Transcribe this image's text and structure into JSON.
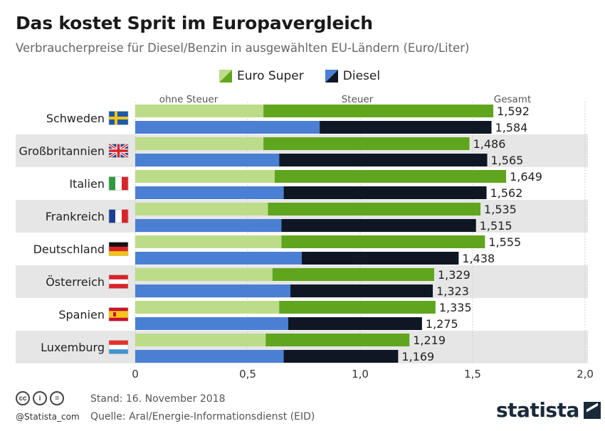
{
  "title": "Das kostet Sprit im Europavergleich",
  "subtitle": "Verbraucherpreise für Diesel/Benzin in ausgewählten EU-Ländern (Euro/Liter)",
  "legend": {
    "super": "Euro Super",
    "diesel": "Diesel"
  },
  "colors": {
    "super_light": "#bcdc8a",
    "super_dark": "#5fa51e",
    "diesel_light": "#4a7fd4",
    "diesel_dark": "#0f1724",
    "stripe": "#e6e6e6"
  },
  "chart_data": {
    "type": "bar",
    "orientation": "horizontal-stacked",
    "title": "Das kostet Sprit im Europavergleich",
    "column_labels": {
      "net": "ohne Steuer",
      "tax": "Steuer",
      "total": "Gesamt"
    },
    "xlim": [
      0,
      2.0
    ],
    "xticks": [
      "0",
      "0,5",
      "1,0",
      "1,5",
      "2,0"
    ],
    "tick_values": [
      0,
      0.5,
      1.0,
      1.5,
      2.0
    ],
    "categories": [
      "Schweden",
      "Großbritannien",
      "Italien",
      "Frankreich",
      "Deutschland",
      "Österreich",
      "Spanien",
      "Luxemburg"
    ],
    "series": [
      {
        "name": "Euro Super",
        "net": [
          0.57,
          0.57,
          0.62,
          0.59,
          0.65,
          0.61,
          0.64,
          0.58
        ],
        "total": [
          1.592,
          1.486,
          1.649,
          1.535,
          1.555,
          1.329,
          1.335,
          1.219
        ],
        "labels": [
          "1,592",
          "1,486",
          "1,649",
          "1,535",
          "1,555",
          "1,329",
          "1,335",
          "1,219"
        ]
      },
      {
        "name": "Diesel",
        "net": [
          0.82,
          0.64,
          0.66,
          0.65,
          0.74,
          0.69,
          0.68,
          0.66
        ],
        "total": [
          1.584,
          1.565,
          1.562,
          1.515,
          1.438,
          1.323,
          1.275,
          1.169
        ],
        "labels": [
          "1,584",
          "1,565",
          "1,562",
          "1,515",
          "1,438",
          "1,323",
          "1,275",
          "1,169"
        ]
      }
    ]
  },
  "footer": {
    "cc_icons": [
      "cc",
      "i",
      "="
    ],
    "handle": "@Statista_com",
    "stand": "Stand: 16. November 2018",
    "source": "Quelle: Aral/Energie-Informationsdienst (EID)",
    "logo": "statista"
  }
}
